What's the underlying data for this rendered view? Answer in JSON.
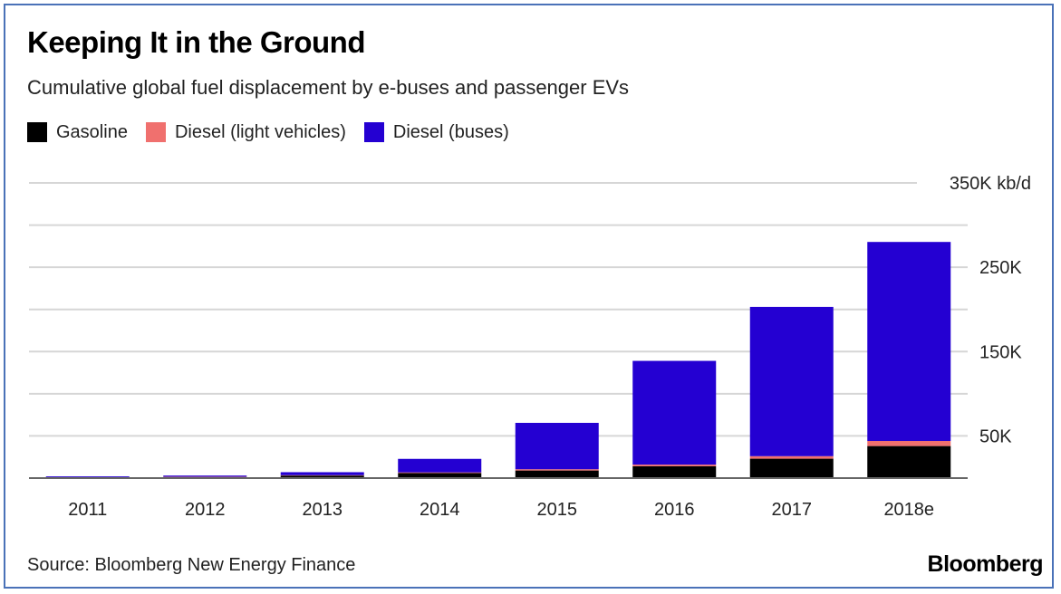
{
  "chart_data": {
    "type": "bar",
    "stacked": true,
    "title": "Keeping It in the Ground",
    "subtitle": "Cumulative global fuel displacement by e-buses and passenger EVs",
    "categories": [
      "2011",
      "2012",
      "2013",
      "2014",
      "2015",
      "2016",
      "2017",
      "2018e"
    ],
    "series": [
      {
        "name": "Gasoline",
        "color": "#000000",
        "values": [
          300,
          1200,
          3000,
          6000,
          9000,
          14000,
          23000,
          38000
        ]
      },
      {
        "name": "Diesel (light vehicles)",
        "color": "#f0706e",
        "values": [
          100,
          400,
          500,
          800,
          1500,
          2000,
          3000,
          6000
        ]
      },
      {
        "name": "Diesel (buses)",
        "color": "#2400d2",
        "values": [
          1600,
          1400,
          3500,
          16000,
          55000,
          123000,
          177000,
          236000
        ]
      }
    ],
    "ylim": [
      0,
      350000
    ],
    "gridlines": [
      0,
      50000,
      100000,
      150000,
      200000,
      250000,
      300000,
      350000
    ],
    "y_tick_labels": [
      {
        "value": 50000,
        "label": "50K"
      },
      {
        "value": 150000,
        "label": "150K"
      },
      {
        "value": 250000,
        "label": "250K"
      },
      {
        "value": 350000,
        "label": "350K kb/d"
      }
    ],
    "grid": true,
    "legend_position": "top-left",
    "source": "Source: Bloomberg New Energy Finance",
    "brand": "Bloomberg"
  }
}
